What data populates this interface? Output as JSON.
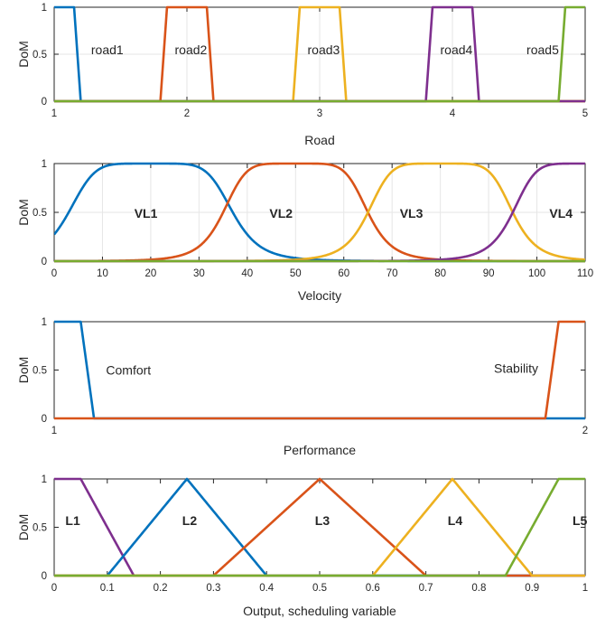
{
  "colors": {
    "blue": "#0072BD",
    "orange": "#D95319",
    "yellow": "#EDB120",
    "purple": "#7E2F8E",
    "green": "#77AC30",
    "axis": "#262626",
    "grid": "#e6e6e6"
  },
  "chart_data": [
    {
      "type": "line",
      "xlabel": "Road",
      "ylabel": "DoM",
      "xlim": [
        1,
        5
      ],
      "ylim": [
        0,
        1
      ],
      "xticks": [
        "1",
        "2",
        "3",
        "4",
        "5"
      ],
      "yticks": [
        "0",
        "0.5",
        "1"
      ],
      "grid": true,
      "label_weight": "normal",
      "series": [
        {
          "name": "road1",
          "color": "blue",
          "mf": "trap",
          "params": [
            0.8,
            0.85,
            1.15,
            1.2
          ],
          "label_x": 1.4,
          "label_y": 0.55
        },
        {
          "name": "road2",
          "color": "orange",
          "mf": "trap",
          "params": [
            1.8,
            1.85,
            2.15,
            2.2
          ],
          "label_x": 2.03,
          "label_y": 0.55
        },
        {
          "name": "road3",
          "color": "yellow",
          "mf": "trap",
          "params": [
            2.8,
            2.85,
            3.15,
            3.2
          ],
          "label_x": 3.03,
          "label_y": 0.55
        },
        {
          "name": "road4",
          "color": "purple",
          "mf": "trap",
          "params": [
            3.8,
            3.85,
            4.15,
            4.2
          ],
          "label_x": 4.03,
          "label_y": 0.55
        },
        {
          "name": "road5",
          "color": "green",
          "mf": "trap",
          "params": [
            4.8,
            4.85,
            5.15,
            5.2
          ],
          "label_x": 4.68,
          "label_y": 0.55
        }
      ]
    },
    {
      "type": "line",
      "xlabel": "Velocity",
      "ylabel": "DoM",
      "xlim": [
        0,
        110
      ],
      "ylim": [
        0,
        1
      ],
      "xticks": [
        "0",
        "10",
        "20",
        "30",
        "40",
        "50",
        "60",
        "70",
        "80",
        "90",
        "100",
        "110"
      ],
      "yticks": [
        "0",
        "0.5",
        "1"
      ],
      "grid": true,
      "label_weight": "bold",
      "series": [
        {
          "name": "VL1",
          "color": "blue",
          "mf": "gbell",
          "params": [
            17,
            3,
            20
          ],
          "label_x": 19,
          "label_y": 0.49
        },
        {
          "name": "VL2",
          "color": "orange",
          "mf": "gbell",
          "params": [
            15,
            3,
            50
          ],
          "label_x": 47,
          "label_y": 0.49
        },
        {
          "name": "VL3",
          "color": "yellow",
          "mf": "gbell",
          "params": [
            15,
            3,
            80
          ],
          "label_x": 74,
          "label_y": 0.49
        },
        {
          "name": "VL4",
          "color": "purple",
          "mf": "gbell",
          "params": [
            15,
            3,
            110
          ],
          "label_x": 105,
          "label_y": 0.49
        },
        {
          "name": "",
          "color": "green",
          "mf": "const",
          "params": [
            0
          ]
        }
      ]
    },
    {
      "type": "line",
      "xlabel": "Performance",
      "ylabel": "DoM",
      "xlim": [
        1,
        2
      ],
      "ylim": [
        0,
        1
      ],
      "xticks": [
        "1",
        "2"
      ],
      "yticks": [
        "0",
        "0.5",
        "1"
      ],
      "grid": false,
      "label_weight": "normal",
      "series": [
        {
          "name": "Comfort",
          "color": "blue",
          "mf": "trap",
          "params": [
            0.9,
            0.95,
            1.05,
            1.075
          ],
          "label_x": 1.14,
          "label_y": 0.5
        },
        {
          "name": "Stability",
          "color": "orange",
          "mf": "trap",
          "params": [
            1.925,
            1.95,
            2.05,
            2.1
          ],
          "label_x": 1.87,
          "label_y": 0.52
        }
      ]
    },
    {
      "type": "line",
      "xlabel": "Output, scheduling variable",
      "ylabel": "DoM",
      "xlim": [
        0,
        1
      ],
      "ylim": [
        0,
        1
      ],
      "xticks": [
        "0",
        "0.1",
        "0.2",
        "0.3",
        "0.4",
        "0.5",
        "0.6",
        "0.7",
        "0.8",
        "0.9",
        "1"
      ],
      "yticks": [
        "0",
        "0.5",
        "1"
      ],
      "grid": false,
      "label_weight": "bold",
      "series": [
        {
          "name": "L1",
          "color": "purple",
          "mf": "trap",
          "params": [
            -0.1,
            -0.05,
            0.05,
            0.15
          ],
          "label_x": 0.035,
          "label_y": 0.57
        },
        {
          "name": "L2",
          "color": "blue",
          "mf": "tri",
          "params": [
            0.1,
            0.25,
            0.4
          ],
          "label_x": 0.255,
          "label_y": 0.57
        },
        {
          "name": "L3",
          "color": "orange",
          "mf": "tri",
          "params": [
            0.3,
            0.5,
            0.7
          ],
          "label_x": 0.505,
          "label_y": 0.57
        },
        {
          "name": "L4",
          "color": "yellow",
          "mf": "tri",
          "params": [
            0.6,
            0.75,
            0.9
          ],
          "label_x": 0.755,
          "label_y": 0.57
        },
        {
          "name": "L5",
          "color": "green",
          "mf": "trap",
          "params": [
            0.85,
            0.95,
            1.05,
            1.1
          ],
          "label_x": 0.99,
          "label_y": 0.57
        }
      ]
    }
  ]
}
